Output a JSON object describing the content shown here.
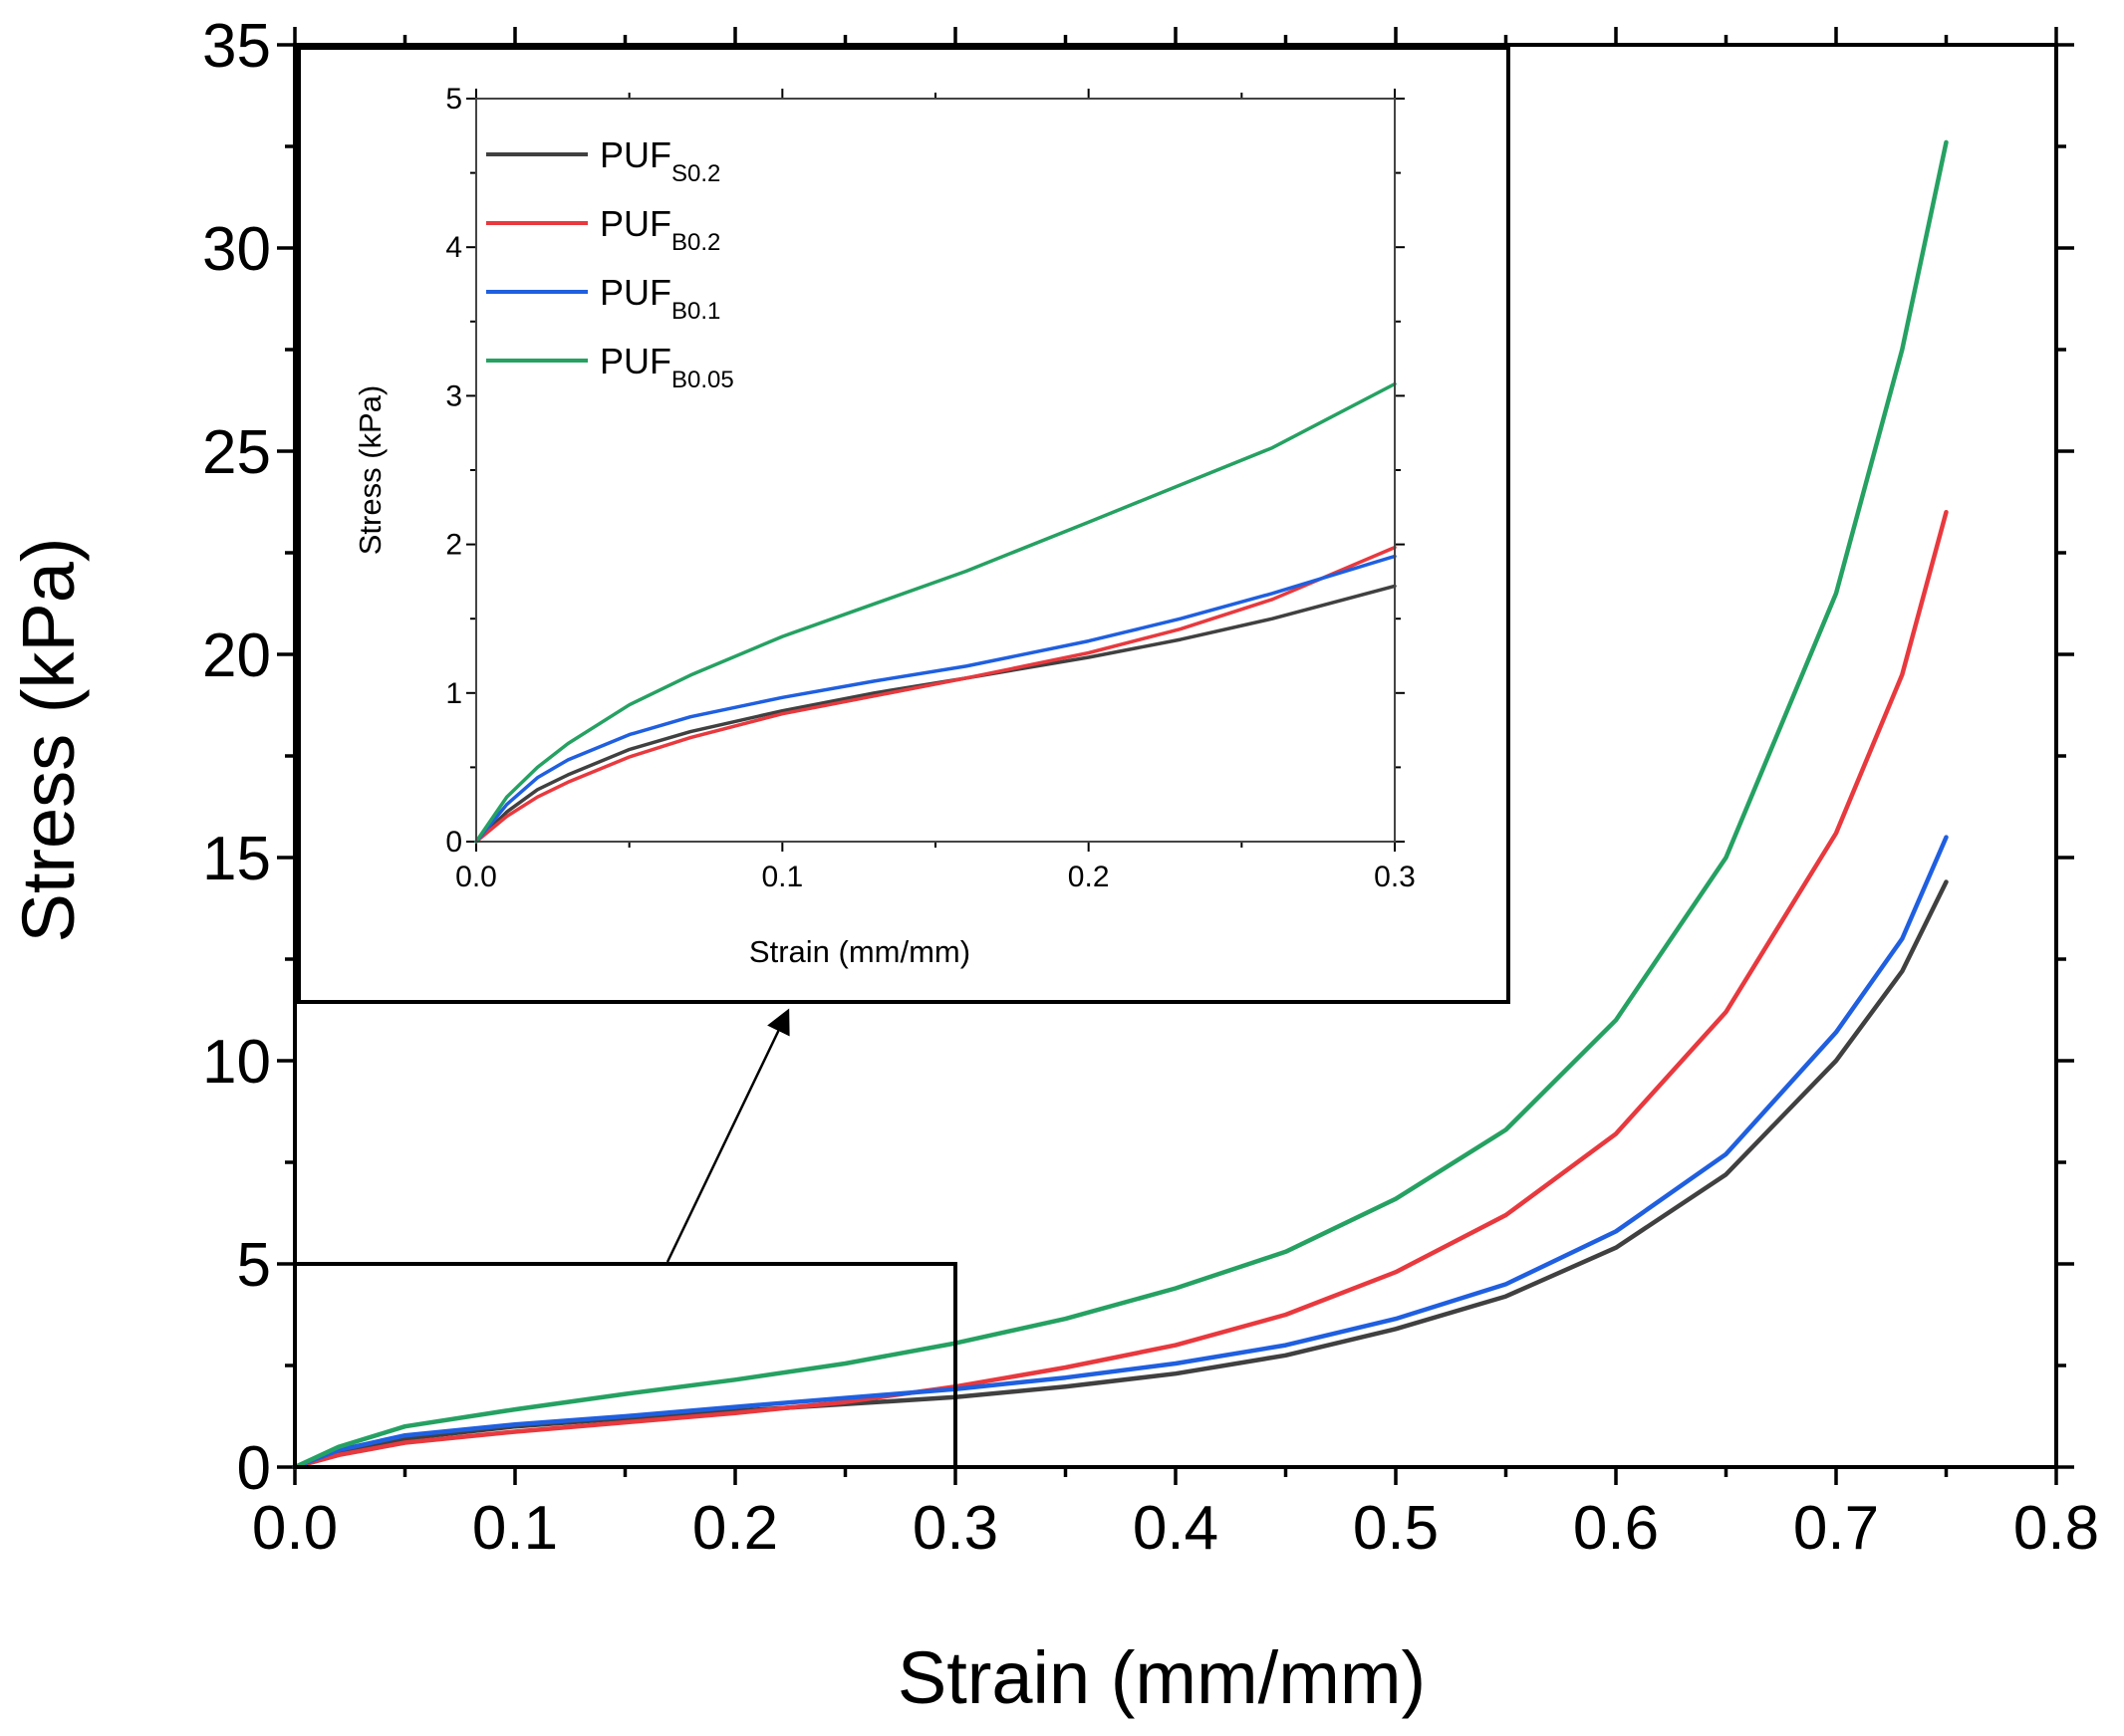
{
  "chart_data": [
    {
      "id": "main",
      "type": "line",
      "title": "",
      "xlabel": "Strain (mm/mm)",
      "ylabel": "Stress (kPa)",
      "xlim": [
        0.0,
        0.8
      ],
      "ylim": [
        0,
        35
      ],
      "xticks": [
        0.0,
        0.1,
        0.2,
        0.3,
        0.4,
        0.5,
        0.6,
        0.7,
        0.8
      ],
      "xtick_labels": [
        "0.0",
        "0.1",
        "0.2",
        "0.3",
        "0.4",
        "0.5",
        "0.6",
        "0.7",
        "0.8"
      ],
      "yticks": [
        0,
        5,
        10,
        15,
        20,
        25,
        30,
        35
      ],
      "ytick_labels": [
        "0",
        "5",
        "10",
        "15",
        "20",
        "25",
        "30",
        "35"
      ],
      "grid": false,
      "series": [
        {
          "name": "PUF_S0.2",
          "color": "#404040",
          "x": [
            0,
            0.02,
            0.05,
            0.1,
            0.15,
            0.2,
            0.25,
            0.3,
            0.35,
            0.4,
            0.45,
            0.5,
            0.55,
            0.6,
            0.65,
            0.7,
            0.73,
            0.75
          ],
          "y": [
            0,
            0.35,
            0.7,
            1.0,
            1.2,
            1.38,
            1.55,
            1.72,
            1.98,
            2.3,
            2.75,
            3.4,
            4.2,
            5.4,
            7.2,
            10.0,
            12.2,
            14.4
          ]
        },
        {
          "name": "PUF_B0.2",
          "color": "#e8393e",
          "x": [
            0,
            0.02,
            0.05,
            0.1,
            0.15,
            0.2,
            0.25,
            0.3,
            0.35,
            0.4,
            0.45,
            0.5,
            0.55,
            0.6,
            0.65,
            0.7,
            0.73,
            0.75
          ],
          "y": [
            0,
            0.3,
            0.6,
            0.87,
            1.1,
            1.33,
            1.6,
            1.98,
            2.45,
            3.0,
            3.75,
            4.8,
            6.2,
            8.2,
            11.2,
            15.6,
            19.5,
            23.5
          ]
        },
        {
          "name": "PUF_B0.1",
          "color": "#1f5fe0",
          "x": [
            0,
            0.02,
            0.05,
            0.1,
            0.15,
            0.2,
            0.25,
            0.3,
            0.35,
            0.4,
            0.45,
            0.5,
            0.55,
            0.6,
            0.65,
            0.7,
            0.73,
            0.75
          ],
          "y": [
            0,
            0.42,
            0.78,
            1.05,
            1.25,
            1.48,
            1.7,
            1.92,
            2.2,
            2.55,
            3.0,
            3.65,
            4.5,
            5.8,
            7.7,
            10.7,
            13.0,
            15.5
          ]
        },
        {
          "name": "PUF_B0.05",
          "color": "#25a162",
          "x": [
            0,
            0.02,
            0.05,
            0.1,
            0.15,
            0.2,
            0.25,
            0.3,
            0.35,
            0.4,
            0.45,
            0.5,
            0.55,
            0.6,
            0.65,
            0.7,
            0.73,
            0.75
          ],
          "y": [
            0,
            0.5,
            1.0,
            1.42,
            1.8,
            2.15,
            2.55,
            3.05,
            3.65,
            4.4,
            5.3,
            6.6,
            8.3,
            11.0,
            15.0,
            21.5,
            27.5,
            32.6
          ]
        }
      ],
      "annotations": [
        "zoom rectangle 0.0–0.3 strain, 0–5 kPa stress, arrow to inset"
      ]
    },
    {
      "id": "inset",
      "type": "line",
      "title": "",
      "xlabel": "Strain (mm/mm)",
      "ylabel": "Stress (kPa)",
      "xlim": [
        0.0,
        0.3
      ],
      "ylim": [
        0,
        5
      ],
      "xticks": [
        0.0,
        0.1,
        0.2,
        0.3
      ],
      "xtick_labels": [
        "0.0",
        "0.1",
        "0.2",
        "0.3"
      ],
      "yticks": [
        0,
        1,
        2,
        3,
        4,
        5
      ],
      "ytick_labels": [
        "0",
        "1",
        "2",
        "3",
        "4",
        "5"
      ],
      "grid": false,
      "legend": "top-left",
      "series": [
        {
          "name": "PUF_S0.2",
          "label_main": "PUF",
          "label_sub": "S0.2",
          "color": "#404040",
          "x": [
            0,
            0.01,
            0.02,
            0.03,
            0.05,
            0.07,
            0.1,
            0.13,
            0.16,
            0.2,
            0.23,
            0.26,
            0.3
          ],
          "y": [
            0,
            0.2,
            0.35,
            0.45,
            0.62,
            0.74,
            0.88,
            1.0,
            1.1,
            1.24,
            1.36,
            1.5,
            1.72
          ]
        },
        {
          "name": "PUF_B0.2",
          "label_main": "PUF",
          "label_sub": "B0.2",
          "color": "#e8393e",
          "x": [
            0,
            0.01,
            0.02,
            0.03,
            0.05,
            0.07,
            0.1,
            0.13,
            0.16,
            0.2,
            0.23,
            0.26,
            0.3
          ],
          "y": [
            0,
            0.17,
            0.3,
            0.4,
            0.57,
            0.7,
            0.86,
            0.98,
            1.1,
            1.27,
            1.43,
            1.63,
            1.98
          ]
        },
        {
          "name": "PUF_B0.1",
          "label_main": "PUF",
          "label_sub": "B0.1",
          "color": "#1f5fe0",
          "x": [
            0,
            0.01,
            0.02,
            0.03,
            0.05,
            0.07,
            0.1,
            0.13,
            0.16,
            0.2,
            0.23,
            0.26,
            0.3
          ],
          "y": [
            0,
            0.25,
            0.43,
            0.55,
            0.72,
            0.84,
            0.97,
            1.08,
            1.18,
            1.35,
            1.5,
            1.67,
            1.92
          ]
        },
        {
          "name": "PUF_B0.05",
          "label_main": "PUF",
          "label_sub": "B0.05",
          "color": "#25a162",
          "x": [
            0,
            0.01,
            0.02,
            0.03,
            0.05,
            0.07,
            0.1,
            0.13,
            0.16,
            0.2,
            0.23,
            0.26,
            0.3
          ],
          "y": [
            0,
            0.3,
            0.5,
            0.66,
            0.92,
            1.12,
            1.38,
            1.6,
            1.82,
            2.15,
            2.4,
            2.65,
            3.08
          ]
        }
      ]
    }
  ]
}
